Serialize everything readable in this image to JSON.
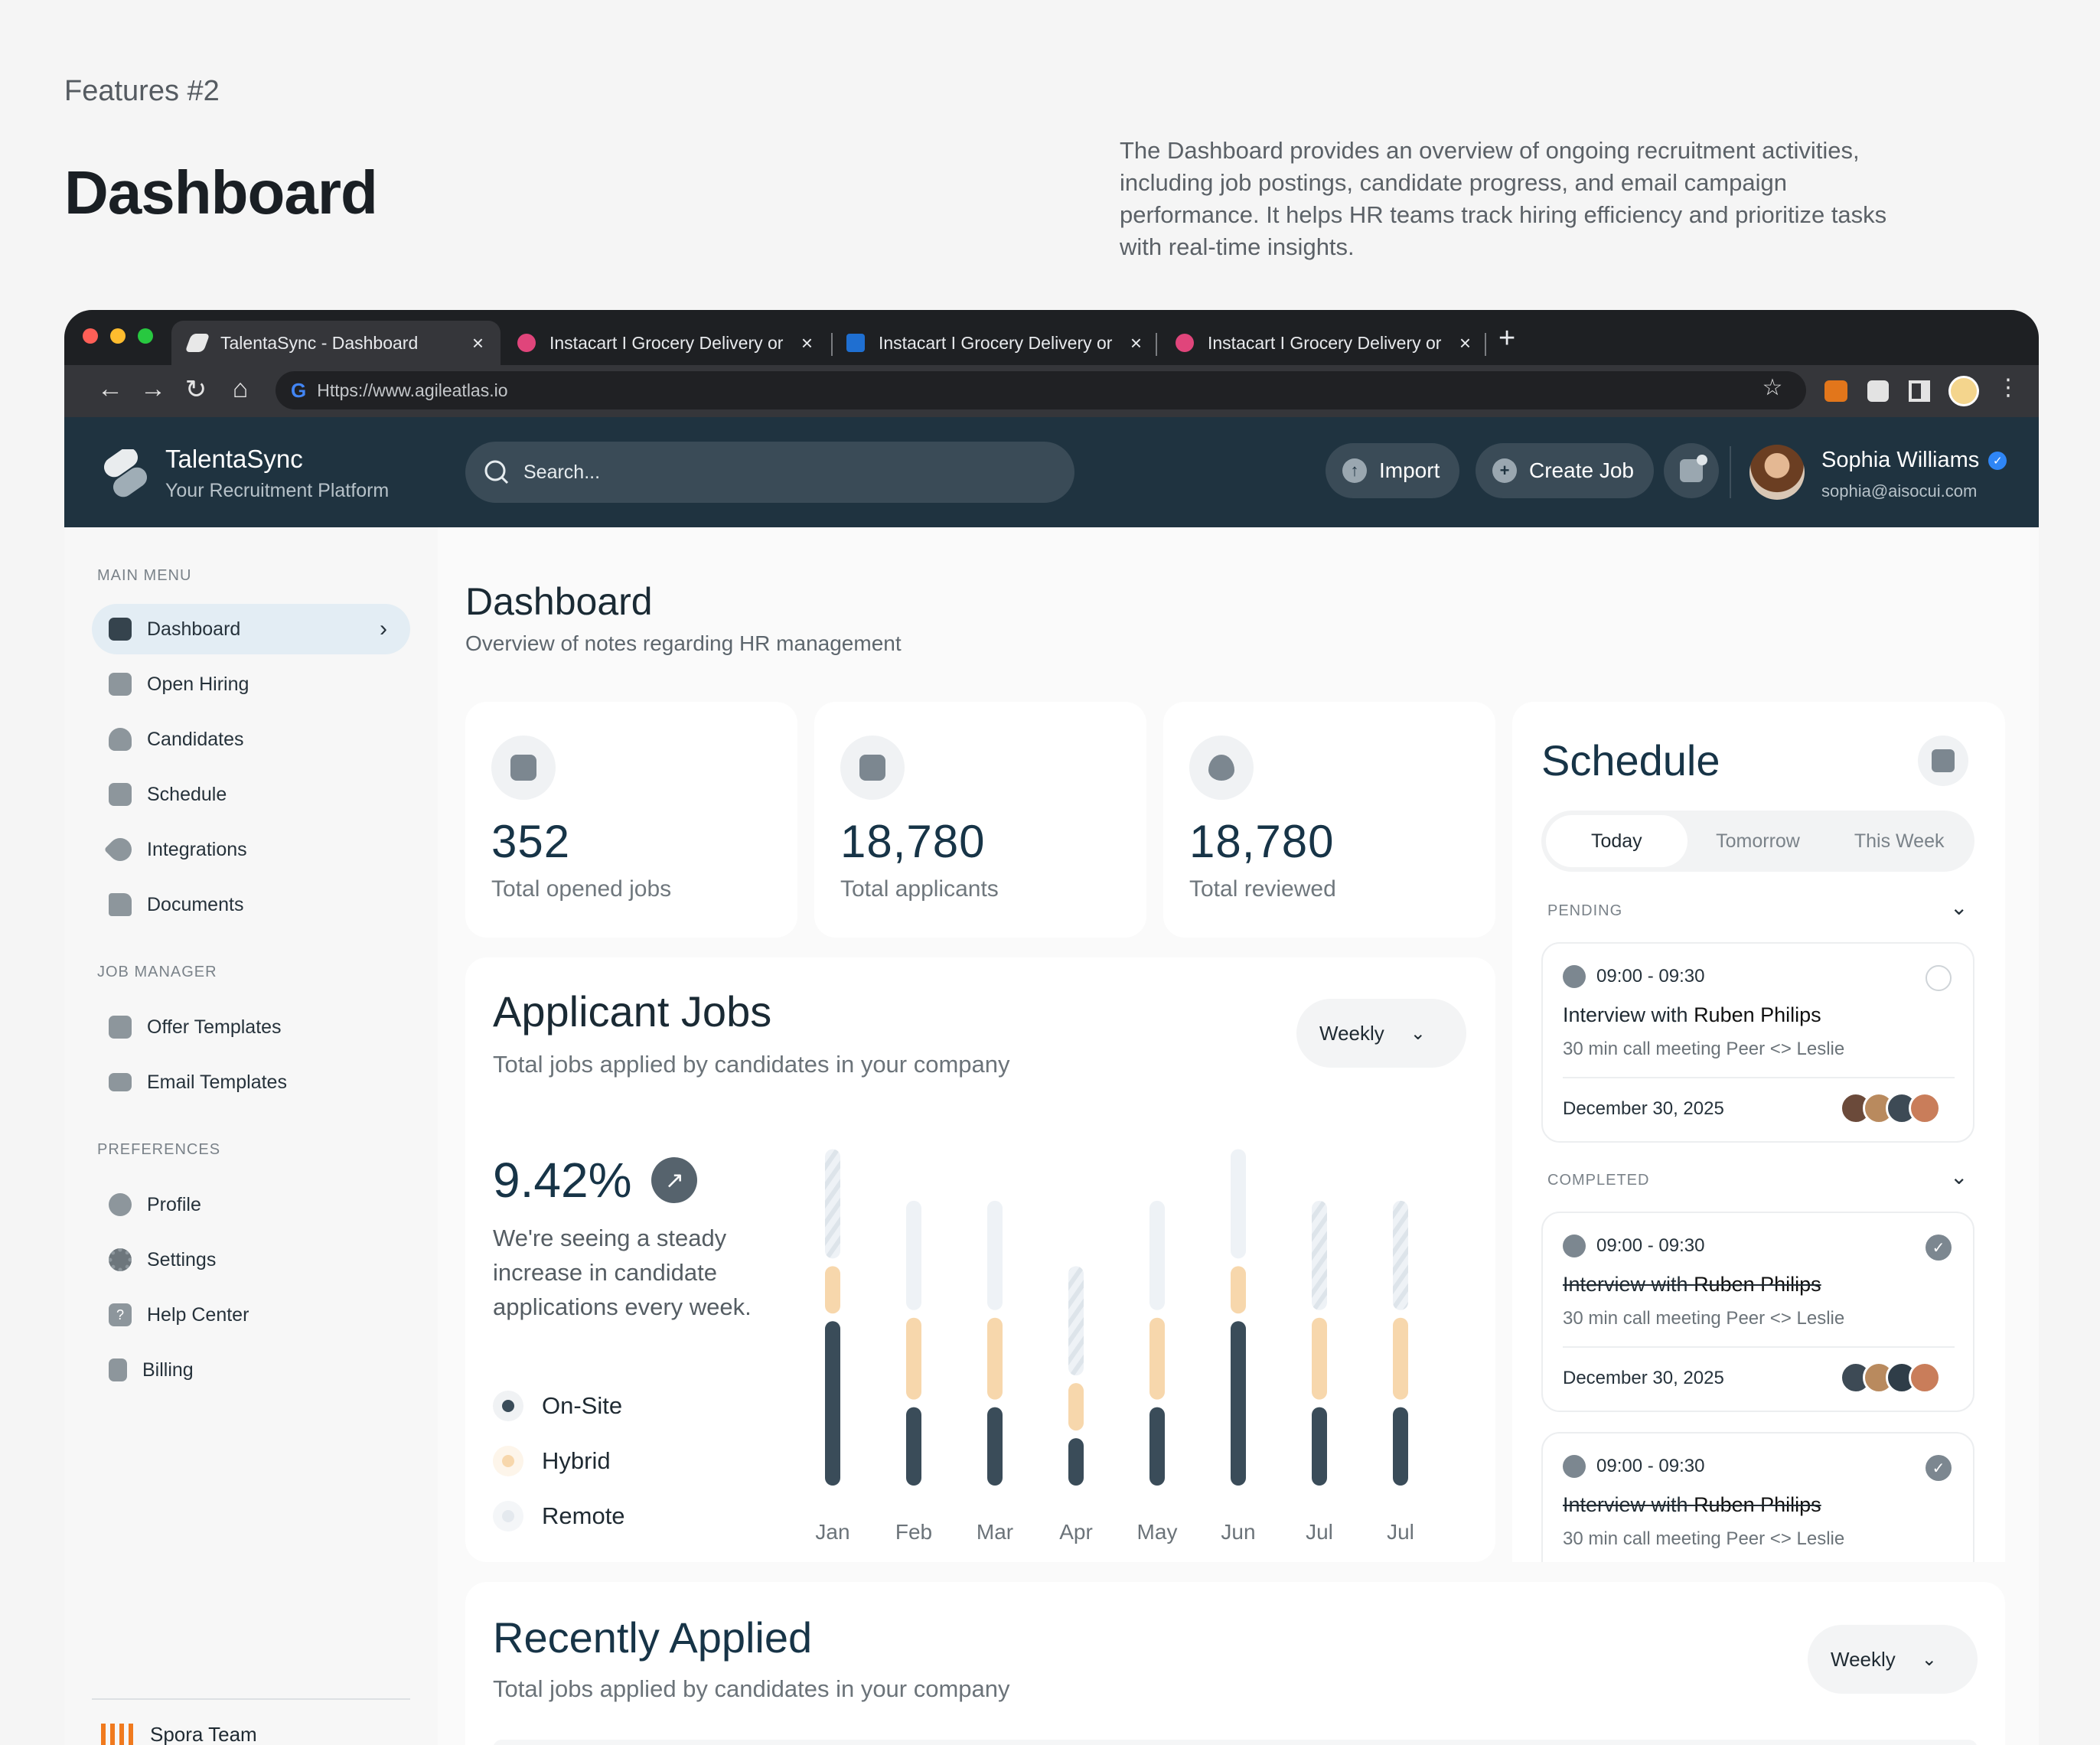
{
  "intro": {
    "label": "Features #2",
    "title": "Dashboard",
    "description": "The Dashboard provides an overview of ongoing recruitment activities, including job postings, candidate progress, and email campaign performance. It helps HR teams track hiring efficiency and prioritize tasks with real-time insights."
  },
  "browser": {
    "tabs": [
      {
        "label": "TalentaSync - Dashboard",
        "favicon_color": "#e8e8e8",
        "active": true
      },
      {
        "label": "Instacart I Grocery Delivery or",
        "favicon_color": "#e0457b",
        "active": false
      },
      {
        "label": "Instacart I Grocery Delivery or",
        "favicon_color": "#1f6fd1",
        "active": false
      },
      {
        "label": "Instacart I Grocery Delivery or",
        "favicon_color": "#e0457b",
        "active": false
      }
    ],
    "close_glyph": "×",
    "new_tab_glyph": "+",
    "url": "Https://www.agileatlas.io"
  },
  "header": {
    "brand": "TalentaSync",
    "tagline": "Your Recruitment Platform",
    "search_placeholder": "Search...",
    "import_label": "Import",
    "create_job_label": "Create Job",
    "user_name": "Sophia Williams",
    "user_email": "sophia@aisocui.com"
  },
  "sidebar": {
    "main_menu_label": "MAIN MENU",
    "main_menu": [
      {
        "label": "Dashboard",
        "icon": "dashboard-icon",
        "active": true
      },
      {
        "label": "Open Hiring",
        "icon": "briefcase-icon"
      },
      {
        "label": "Candidates",
        "icon": "users-icon"
      },
      {
        "label": "Schedule",
        "icon": "calendar-icon"
      },
      {
        "label": "Integrations",
        "icon": "rocket-icon"
      },
      {
        "label": "Documents",
        "icon": "folder-icon"
      }
    ],
    "job_manager_label": "JOB MANAGER",
    "job_manager": [
      {
        "label": "Offer Templates",
        "icon": "inbox-icon"
      },
      {
        "label": "Email Templates",
        "icon": "mail-icon"
      }
    ],
    "preferences_label": "PREFERENCES",
    "preferences": [
      {
        "label": "Profile",
        "icon": "profile-icon"
      },
      {
        "label": "Settings",
        "icon": "gear-icon"
      },
      {
        "label": "Help Center",
        "icon": "help-icon"
      },
      {
        "label": "Billing",
        "icon": "receipt-icon"
      }
    ]
  },
  "page": {
    "title": "Dashboard",
    "subtitle": "Overview of notes regarding HR management"
  },
  "stats": [
    {
      "value": "352",
      "label": "Total opened jobs",
      "icon": "briefcase-alert-icon"
    },
    {
      "value": "18,780",
      "label": "Total applicants",
      "icon": "applicant-check-icon"
    },
    {
      "value": "18,780",
      "label": "Total reviewed",
      "icon": "eye-icon"
    }
  ],
  "applicant_jobs": {
    "title": "Applicant Jobs",
    "subtitle": "Total jobs applied by candidates in your company",
    "period": "Weekly",
    "percentage": "9.42%",
    "description": "We're seeing a steady increase in candidate applications every week.",
    "legend": [
      {
        "label": "On-Site",
        "color": "#3a4c59"
      },
      {
        "label": "Hybrid",
        "color": "#f7d7ac"
      },
      {
        "label": "Remote",
        "color": "#eef2f6"
      }
    ]
  },
  "chart_data": {
    "type": "bar",
    "stacked": true,
    "categories": [
      "Jan",
      "Feb",
      "Mar",
      "Apr",
      "May",
      "Jun",
      "Jul",
      "Jul"
    ],
    "series": [
      {
        "name": "On-Site",
        "values": [
          5,
          2.5,
          2.5,
          1.6,
          2.5,
          5,
          2.5,
          2.5
        ],
        "color": "#3a4c59"
      },
      {
        "name": "Hybrid",
        "values": [
          1.6,
          2.6,
          2.6,
          1.6,
          2.6,
          1.6,
          2.6,
          2.6
        ],
        "color": "#f7d7ac"
      },
      {
        "name": "Remote",
        "values": [
          3.4,
          3.4,
          3.4,
          3.4,
          3.4,
          3.4,
          3.4,
          3.4
        ],
        "color": "#eef2f6"
      }
    ],
    "striped_remote": [
      true,
      false,
      false,
      true,
      false,
      false,
      true,
      true
    ],
    "ylim": [
      0,
      10.5
    ],
    "grid": false
  },
  "schedule": {
    "title": "Schedule",
    "tabs": [
      "Today",
      "Tomorrow",
      "This Week"
    ],
    "pending_label": "PENDING",
    "completed_label": "COMPLETED",
    "events": [
      {
        "time": "09:00 - 09:30",
        "title_prefix": "Interview with ",
        "person": "Ruben Philips",
        "meta": "30 min call meeting Peer <> Leslie",
        "date": "December 30, 2025",
        "done": false
      },
      {
        "time": "09:00 - 09:30",
        "title_prefix": "Interview with ",
        "person": "Ruben Philips",
        "meta": "30 min call meeting Peer <> Leslie",
        "date": "December 30, 2025",
        "done": true
      },
      {
        "time": "09:00 - 09:30",
        "title_prefix": "Interview with ",
        "person": "Ruben Philips",
        "meta": "30 min call meeting Peer <> Leslie",
        "done": true
      }
    ],
    "avatar_colors": [
      "#6b4a3a",
      "#b98a5e",
      "#3d4a55",
      "#c97d5a"
    ]
  },
  "recently_applied": {
    "title": "Recently Applied",
    "subtitle": "Total jobs applied by candidates in your company",
    "period": "Weekly"
  },
  "sidebar_footer": {
    "team": "Spora Team"
  }
}
